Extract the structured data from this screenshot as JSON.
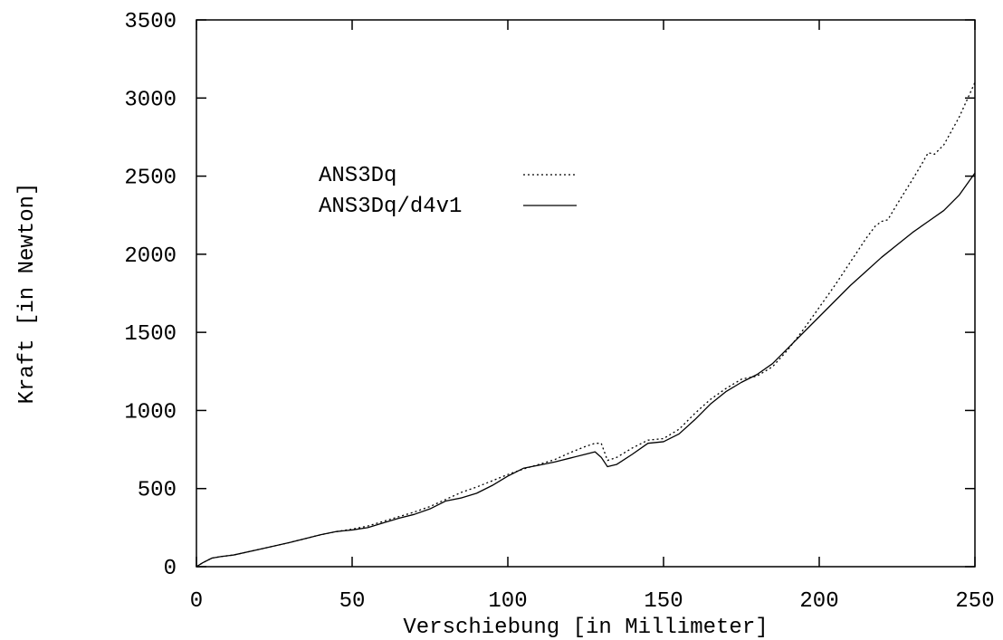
{
  "chart_data": {
    "type": "line",
    "xlabel": "Verschiebung [in Millimeter]",
    "ylabel": "Kraft [in Newton]",
    "xlim": [
      0,
      250
    ],
    "ylim": [
      0,
      3500
    ],
    "xticks": [
      0,
      50,
      100,
      150,
      200,
      250
    ],
    "yticks": [
      0,
      500,
      1000,
      1500,
      2000,
      2500,
      3000,
      3500
    ],
    "grid": false,
    "legend_position": "upper-left-center",
    "series": [
      {
        "name": "ANS3Dq",
        "style": "dotted",
        "color": "#000000",
        "x": [
          0,
          2,
          5,
          8,
          12,
          20,
          30,
          40,
          45,
          50,
          55,
          60,
          65,
          70,
          75,
          80,
          85,
          90,
          95,
          100,
          105,
          110,
          115,
          120,
          125,
          128,
          130,
          132,
          135,
          140,
          145,
          150,
          155,
          160,
          165,
          170,
          175,
          180,
          185,
          190,
          195,
          200,
          205,
          210,
          215,
          218,
          220,
          222,
          225,
          230,
          233,
          235,
          237,
          240,
          245,
          250
        ],
        "y": [
          0,
          25,
          55,
          65,
          75,
          110,
          155,
          205,
          225,
          240,
          260,
          290,
          320,
          350,
          385,
          430,
          475,
          510,
          550,
          590,
          625,
          655,
          685,
          730,
          770,
          790,
          790,
          680,
          700,
          760,
          810,
          820,
          880,
          980,
          1070,
          1140,
          1200,
          1220,
          1280,
          1390,
          1520,
          1660,
          1800,
          1950,
          2100,
          2180,
          2210,
          2220,
          2320,
          2480,
          2580,
          2650,
          2640,
          2700,
          2880,
          3100
        ]
      },
      {
        "name": "ANS3Dq/d4v1",
        "style": "solid",
        "color": "#000000",
        "x": [
          0,
          2,
          5,
          8,
          12,
          20,
          30,
          40,
          45,
          50,
          55,
          60,
          65,
          70,
          75,
          80,
          85,
          90,
          95,
          100,
          105,
          110,
          115,
          120,
          125,
          128,
          130,
          132,
          135,
          140,
          145,
          150,
          155,
          160,
          165,
          170,
          175,
          180,
          185,
          190,
          195,
          200,
          205,
          210,
          215,
          220,
          225,
          230,
          235,
          240,
          245,
          250
        ],
        "y": [
          0,
          25,
          55,
          65,
          75,
          110,
          155,
          205,
          225,
          235,
          250,
          280,
          310,
          335,
          370,
          420,
          440,
          470,
          520,
          580,
          630,
          650,
          670,
          695,
          720,
          735,
          700,
          640,
          655,
          720,
          790,
          800,
          850,
          940,
          1040,
          1120,
          1180,
          1230,
          1300,
          1400,
          1500,
          1600,
          1700,
          1800,
          1890,
          1980,
          2060,
          2140,
          2210,
          2280,
          2380,
          2520
        ]
      }
    ]
  }
}
